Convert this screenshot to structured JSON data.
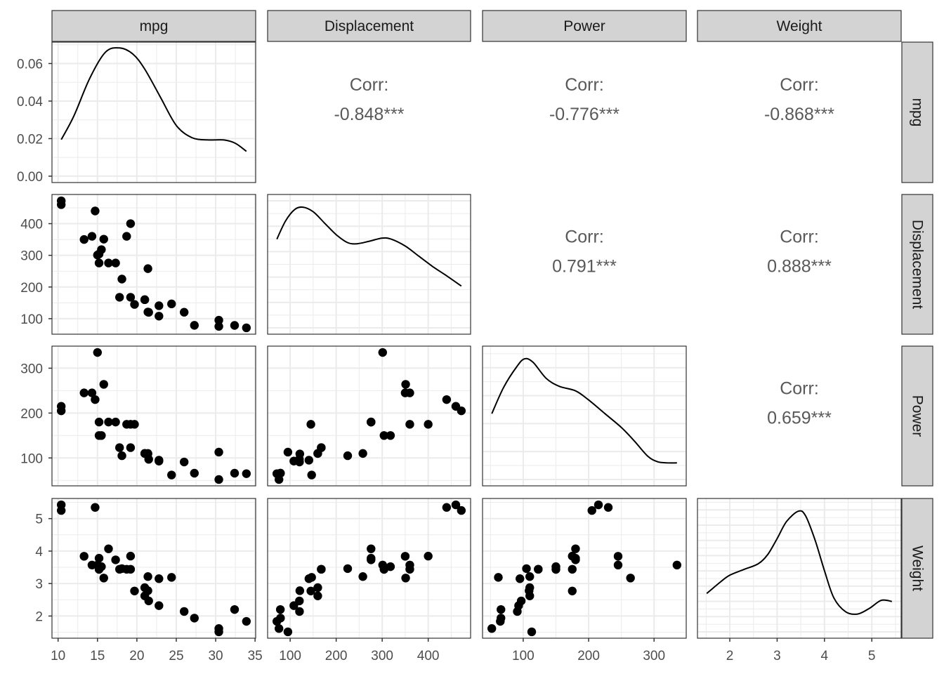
{
  "chart_data": {
    "type": "scatter",
    "title": "",
    "description": "Pairs plot (ggpairs) of mtcars variables: diagonal = density, lower = scatter, upper = correlation",
    "variables": [
      "mpg",
      "Displacement",
      "Power",
      "Weight"
    ],
    "axes": {
      "mpg": {
        "ticks": [
          10,
          15,
          20,
          25,
          30,
          35
        ],
        "range": [
          9.225,
          35.075
        ]
      },
      "Displacement": {
        "ticks": [
          100,
          200,
          300,
          400
        ],
        "range": [
          51.0,
          492.1
        ]
      },
      "Power": {
        "ticks": [
          100,
          200,
          300
        ],
        "range": [
          37.85,
          349.15
        ]
      },
      "Weight": {
        "ticks": [
          2,
          3,
          4,
          5
        ],
        "range": [
          1.317,
          5.62
        ]
      }
    },
    "density_axis": {
      "label_panel": "mpg",
      "ticks": [
        "0.00",
        "0.02",
        "0.04",
        "0.06"
      ],
      "tick_values": [
        0,
        0.02,
        0.04,
        0.06
      ],
      "range": [
        -0.0034,
        0.0714
      ]
    },
    "y_tick_labels": {
      "Displacement": [
        "100",
        "200",
        "300",
        "400"
      ],
      "Power": [
        "100",
        "200",
        "300"
      ],
      "Weight": [
        "2",
        "3",
        "4",
        "5"
      ]
    },
    "x_tick_labels": {
      "mpg": [
        "10",
        "15",
        "20",
        "25",
        "30",
        "35"
      ],
      "Displacement": [
        "100",
        "200",
        "300",
        "400"
      ],
      "Power": [
        "100",
        "200",
        "300"
      ],
      "Weight": [
        "2",
        "3",
        "4",
        "5"
      ]
    },
    "correlations": [
      {
        "row": "mpg",
        "col": "Displacement",
        "label": "Corr:",
        "value": "-0.848***"
      },
      {
        "row": "mpg",
        "col": "Power",
        "label": "Corr:",
        "value": "-0.776***"
      },
      {
        "row": "mpg",
        "col": "Weight",
        "label": "Corr:",
        "value": "-0.868***"
      },
      {
        "row": "Displacement",
        "col": "Power",
        "label": "Corr:",
        "value": "0.791***"
      },
      {
        "row": "Displacement",
        "col": "Weight",
        "label": "Corr:",
        "value": "0.888***"
      },
      {
        "row": "Power",
        "col": "Weight",
        "label": "Corr:",
        "value": "0.659***"
      }
    ],
    "data": {
      "mpg": [
        21.0,
        21.0,
        22.8,
        21.4,
        18.7,
        18.1,
        14.3,
        24.4,
        22.8,
        19.2,
        17.8,
        16.4,
        17.3,
        15.2,
        10.4,
        10.4,
        14.7,
        32.4,
        30.4,
        33.9,
        21.5,
        15.5,
        15.2,
        13.3,
        19.2,
        27.3,
        26.0,
        30.4,
        15.8,
        19.7,
        15.0,
        21.4
      ],
      "Displacement": [
        160,
        160,
        108,
        258,
        360,
        225,
        360,
        146.7,
        140.8,
        167.6,
        167.6,
        275.8,
        275.8,
        275.8,
        472,
        460,
        440,
        78.7,
        75.7,
        71.1,
        120.1,
        318,
        304,
        350,
        400,
        79,
        120.3,
        95.1,
        351,
        145,
        301,
        121
      ],
      "Power": [
        110,
        110,
        93,
        110,
        175,
        105,
        245,
        62,
        95,
        123,
        123,
        180,
        180,
        180,
        205,
        215,
        230,
        66,
        52,
        65,
        97,
        150,
        150,
        245,
        175,
        66,
        91,
        113,
        264,
        175,
        335,
        109
      ],
      "Weight": [
        2.62,
        2.875,
        2.32,
        3.215,
        3.44,
        3.46,
        3.57,
        3.19,
        3.15,
        3.44,
        3.44,
        4.07,
        3.73,
        3.78,
        5.25,
        5.424,
        5.345,
        2.2,
        1.615,
        1.835,
        2.465,
        3.52,
        3.435,
        3.84,
        3.845,
        1.935,
        2.14,
        1.513,
        3.17,
        2.77,
        3.57,
        2.78
      ]
    },
    "density_curves": {
      "mpg": {
        "y_range": [
          -0.0034,
          0.0714
        ],
        "points": [
          [
            10.4,
            0.0195
          ],
          [
            12,
            0.032
          ],
          [
            14,
            0.052
          ],
          [
            16,
            0.066
          ],
          [
            17.8,
            0.0683
          ],
          [
            19.5,
            0.065
          ],
          [
            21,
            0.057
          ],
          [
            23,
            0.042
          ],
          [
            25,
            0.027
          ],
          [
            27,
            0.0205
          ],
          [
            29,
            0.0193
          ],
          [
            31,
            0.0193
          ],
          [
            32.5,
            0.0175
          ],
          [
            33.9,
            0.0132
          ]
        ]
      },
      "Displacement": {
        "relative_points": [
          [
            71.1,
            0.72
          ],
          [
            90,
            0.88
          ],
          [
            110,
            0.98
          ],
          [
            128,
            1.0
          ],
          [
            150,
            0.96
          ],
          [
            175,
            0.86
          ],
          [
            200,
            0.76
          ],
          [
            225,
            0.69
          ],
          [
            245,
            0.68
          ],
          [
            270,
            0.7
          ],
          [
            300,
            0.73
          ],
          [
            320,
            0.72
          ],
          [
            350,
            0.66
          ],
          [
            380,
            0.57
          ],
          [
            410,
            0.48
          ],
          [
            440,
            0.4
          ],
          [
            472,
            0.31
          ]
        ]
      },
      "Power": {
        "relative_points": [
          [
            52,
            0.52
          ],
          [
            70,
            0.75
          ],
          [
            90,
            0.93
          ],
          [
            102,
            1.0
          ],
          [
            115,
            0.97
          ],
          [
            135,
            0.83
          ],
          [
            155,
            0.76
          ],
          [
            180,
            0.72
          ],
          [
            200,
            0.64
          ],
          [
            225,
            0.52
          ],
          [
            250,
            0.4
          ],
          [
            270,
            0.28
          ],
          [
            290,
            0.15
          ],
          [
            305,
            0.1
          ],
          [
            320,
            0.09
          ],
          [
            335,
            0.09
          ]
        ]
      },
      "Weight": {
        "relative_points": [
          [
            1.513,
            0.28
          ],
          [
            1.8,
            0.38
          ],
          [
            2.0,
            0.44
          ],
          [
            2.3,
            0.49
          ],
          [
            2.6,
            0.54
          ],
          [
            2.8,
            0.62
          ],
          [
            3.0,
            0.76
          ],
          [
            3.2,
            0.91
          ],
          [
            3.45,
            1.0
          ],
          [
            3.6,
            0.96
          ],
          [
            3.8,
            0.75
          ],
          [
            4.0,
            0.48
          ],
          [
            4.2,
            0.24
          ],
          [
            4.45,
            0.12
          ],
          [
            4.7,
            0.1
          ],
          [
            4.95,
            0.15
          ],
          [
            5.2,
            0.22
          ],
          [
            5.424,
            0.21
          ]
        ]
      }
    },
    "grid": true,
    "legend": "none"
  },
  "strips": {
    "top": [
      "mpg",
      "Displacement",
      "Power",
      "Weight"
    ],
    "right": [
      "mpg",
      "Displacement",
      "Power",
      "Weight"
    ]
  },
  "colors": {
    "strip_fill": "#d3d3d3",
    "panel_border": "#333333",
    "grid_major": "#ebebeb",
    "point": "#000000",
    "corr_text": "#595959",
    "axis_text": "#4d4d4d"
  }
}
